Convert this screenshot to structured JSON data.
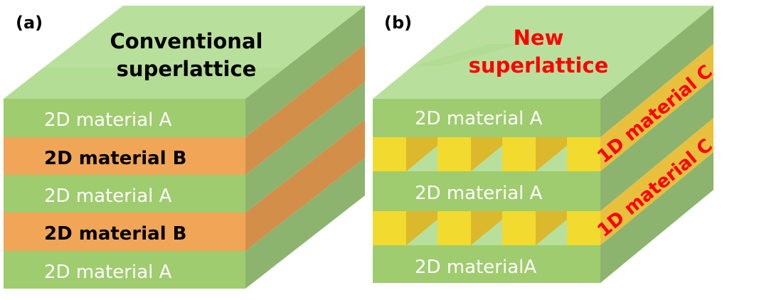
{
  "colors": {
    "green_front": "#9fcc6e",
    "green_top": "#b8e09c",
    "green_side": "#8db46e",
    "orange_front": "#f0a656",
    "orange_side": "#d38f4a",
    "yellow": "#f2da2e",
    "yellow_side": "#dcb82c",
    "red_text": "#ff0000"
  },
  "panel_a": {
    "label": "(a)",
    "title_line1": "Conventional",
    "title_line2": "superlattice",
    "layers": [
      "2D material A",
      "2D material B",
      "2D material A",
      "2D material B",
      "2D material A"
    ]
  },
  "panel_b": {
    "label": "(b)",
    "title_line1": "New",
    "title_line2": "superlattice",
    "layers": [
      "2D material A",
      "2D material A",
      "2D materialA"
    ],
    "rod_labels": [
      "1D material C",
      "1D material C"
    ]
  }
}
